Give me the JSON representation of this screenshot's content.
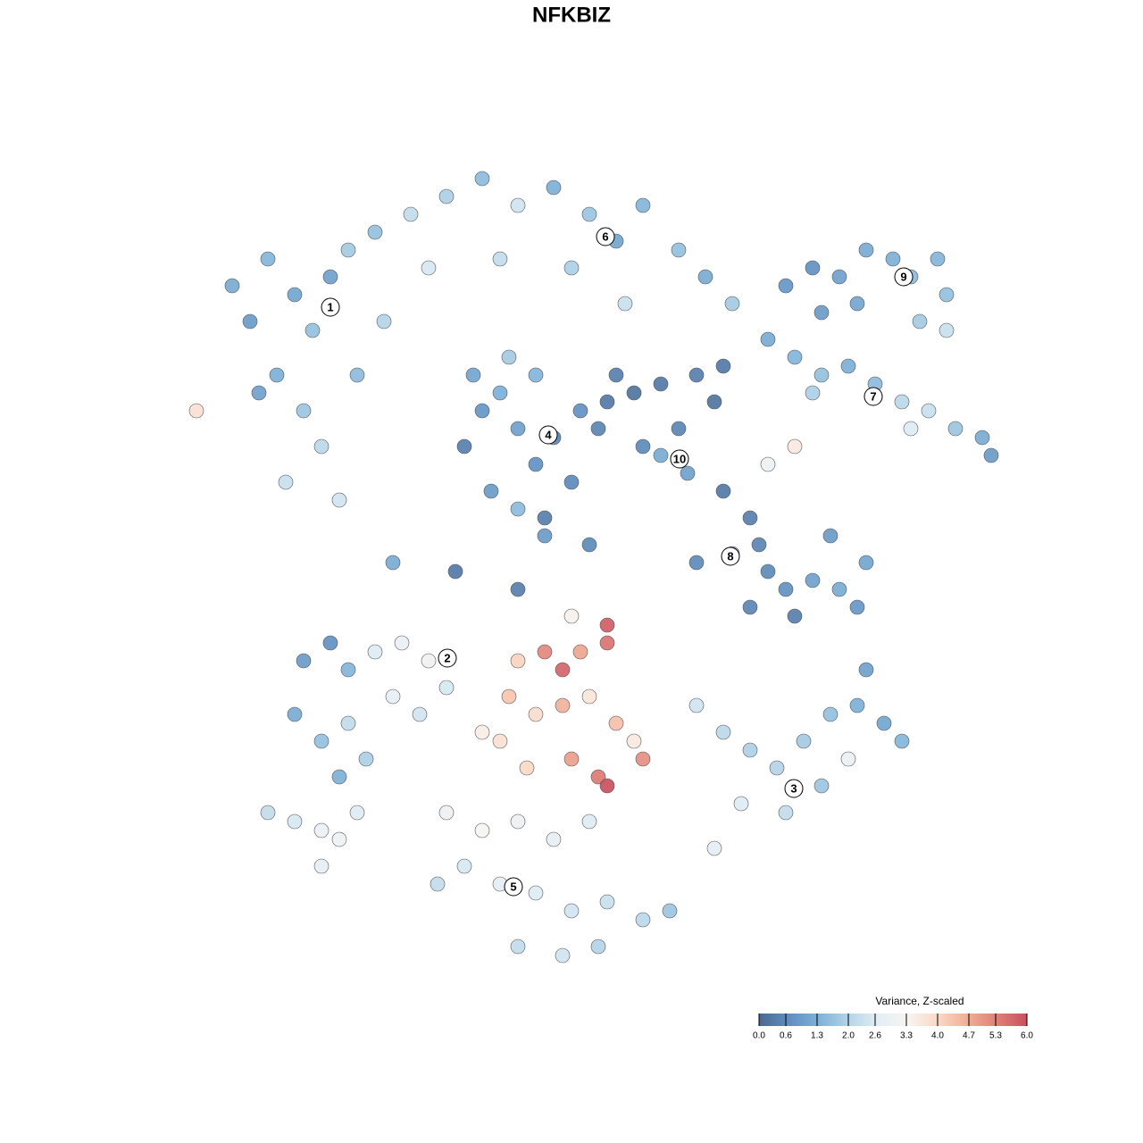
{
  "chart_data": {
    "type": "scatter",
    "title": "NFKBIZ",
    "xlim": [
      -45,
      50
    ],
    "ylim": [
      -46,
      46
    ],
    "x": [
      -38,
      -36,
      -34,
      -31,
      -29,
      -27,
      -25,
      -33,
      -30,
      -28,
      -32,
      -26,
      -24,
      -21,
      -35,
      -42,
      -22,
      -18,
      -14,
      -10,
      -6,
      -2,
      2,
      5,
      8,
      12,
      15,
      18,
      -16,
      -8,
      0,
      6,
      -12,
      -10,
      -8,
      -6,
      -4,
      -2,
      0,
      -9,
      -6,
      -3,
      -11,
      -4,
      1,
      -7,
      4,
      7,
      10,
      14,
      16,
      12,
      10,
      13,
      8,
      5,
      3,
      17,
      24,
      27,
      30,
      33,
      36,
      38,
      41,
      42,
      39,
      32,
      28,
      42,
      22,
      25,
      28,
      31,
      34,
      37,
      40,
      43,
      46,
      47,
      38,
      25,
      22,
      27,
      17,
      20,
      21,
      22,
      24,
      27,
      30,
      32,
      33,
      29,
      18,
      14,
      20,
      25,
      -30,
      -27,
      -25,
      -22,
      -19,
      -16,
      -14,
      -31,
      -28,
      -25,
      -23,
      -20,
      -17,
      -26,
      -6,
      -3,
      -1,
      1,
      4,
      4,
      -7,
      -4,
      -1,
      2,
      5,
      7,
      -8,
      -5,
      0,
      3,
      4,
      8,
      -10,
      0,
      14,
      17,
      20,
      23,
      26,
      29,
      32,
      35,
      37,
      28,
      24,
      19,
      16,
      31,
      -14,
      -10,
      -6,
      -2,
      2,
      -12,
      -8,
      -4,
      0,
      4,
      8,
      11,
      -6,
      -1,
      3,
      -15,
      -34,
      -31,
      -28,
      -26,
      -28,
      -24,
      -20,
      -13,
      -6,
      -3,
      2,
      33
    ],
    "y": [
      32,
      28,
      35,
      31,
      27,
      33,
      36,
      22,
      18,
      14,
      10,
      8,
      22,
      28,
      20,
      18,
      38,
      40,
      42,
      44,
      41,
      43,
      40,
      37,
      41,
      36,
      33,
      30,
      34,
      35,
      34,
      30,
      14,
      18,
      20,
      16,
      12,
      15,
      10,
      9,
      7,
      6,
      22,
      22,
      18,
      24,
      19,
      20,
      21,
      22,
      19,
      16,
      13,
      11,
      14,
      22,
      16,
      23,
      32,
      34,
      33,
      36,
      35,
      33,
      35,
      31,
      28,
      30,
      29,
      27,
      26,
      24,
      22,
      23,
      21,
      19,
      18,
      16,
      15,
      13,
      16,
      14,
      12,
      20,
      9,
      6,
      3,
      0,
      -2,
      -1,
      -2,
      -4,
      1,
      4,
      2,
      1,
      -4,
      -5,
      -10,
      -8,
      -11,
      -9,
      -8,
      -10,
      -13,
      -16,
      -19,
      -17,
      -21,
      -14,
      -16,
      -23,
      -10,
      -9,
      -11,
      -9,
      -6,
      -8,
      -14,
      -16,
      -15,
      -14,
      -17,
      -19,
      -19,
      -22,
      -21,
      -23,
      -24,
      -21,
      -18,
      -5,
      -15,
      -18,
      -20,
      -22,
      -19,
      -16,
      -15,
      -17,
      -19,
      -24,
      -27,
      -26,
      -31,
      -21,
      -27,
      -29,
      -28,
      -30,
      -28,
      -33,
      -35,
      -36,
      -38,
      -37,
      -39,
      -38,
      -42,
      -43,
      -42,
      -35,
      -27,
      -28,
      -29,
      -30,
      -33,
      -27,
      1,
      0,
      -2,
      4,
      3,
      -11
    ],
    "values": [
      1.2,
      0.9,
      1.4,
      1.1,
      1.6,
      1.0,
      1.8,
      1.3,
      1.7,
      2.1,
      2.3,
      2.4,
      1.5,
      2.0,
      1.0,
      3.8,
      1.6,
      2.2,
      1.9,
      1.5,
      2.4,
      1.3,
      1.7,
      1.1,
      1.4,
      1.6,
      1.2,
      1.8,
      2.5,
      2.2,
      1.9,
      2.3,
      0.4,
      0.8,
      1.3,
      1.0,
      0.7,
      0.5,
      0.6,
      0.9,
      1.5,
      0.4,
      1.1,
      1.4,
      0.7,
      1.8,
      0.3,
      0.2,
      0.3,
      0.4,
      0.2,
      0.5,
      1.2,
      1.0,
      0.6,
      0.4,
      0.5,
      0.3,
      0.8,
      0.7,
      1.0,
      1.2,
      1.3,
      1.5,
      1.4,
      1.6,
      1.8,
      1.1,
      0.9,
      2.3,
      1.2,
      1.4,
      1.6,
      1.3,
      1.5,
      2.1,
      2.3,
      1.7,
      1.2,
      0.9,
      2.6,
      3.6,
      3.0,
      1.9,
      0.3,
      0.4,
      0.5,
      0.6,
      0.7,
      1.0,
      1.2,
      0.8,
      1.1,
      0.9,
      1.4,
      0.6,
      0.5,
      0.4,
      0.9,
      0.7,
      1.4,
      2.6,
      2.9,
      3.1,
      2.5,
      1.2,
      1.6,
      2.2,
      1.9,
      2.8,
      2.4,
      1.3,
      4.1,
      5.2,
      5.7,
      4.8,
      5.8,
      5.5,
      4.3,
      3.9,
      4.6,
      3.7,
      4.4,
      3.6,
      3.8,
      4.0,
      4.9,
      5.4,
      6.0,
      5.1,
      3.5,
      3.4,
      2.4,
      2.1,
      1.9,
      2.0,
      1.8,
      1.6,
      1.3,
      1.1,
      1.4,
      1.7,
      2.2,
      2.6,
      2.7,
      2.9,
      3.0,
      3.3,
      3.0,
      2.8,
      2.6,
      2.5,
      2.7,
      2.6,
      2.4,
      2.3,
      2.1,
      1.7,
      2.2,
      2.4,
      2.0,
      2.2,
      2.2,
      2.5,
      2.9,
      3.0,
      2.8,
      2.6,
      1.2,
      0.3,
      0.4,
      0.9,
      0.6,
      1.0
    ],
    "cluster_labels": [
      {
        "label": "1",
        "x": -27,
        "y": 29.6
      },
      {
        "label": "2",
        "x": -13.9,
        "y": -9.7
      },
      {
        "label": "3",
        "x": 24.9,
        "y": -24.3
      },
      {
        "label": "4",
        "x": -2.6,
        "y": 15.3
      },
      {
        "label": "5",
        "x": -6.5,
        "y": -35.3
      },
      {
        "label": "6",
        "x": 3.8,
        "y": 37.5
      },
      {
        "label": "7",
        "x": 33.8,
        "y": 19.6
      },
      {
        "label": "8",
        "x": 17.8,
        "y": 1.7
      },
      {
        "label": "9",
        "x": 37.2,
        "y": 33
      },
      {
        "label": "10",
        "x": 12.1,
        "y": 12.6
      }
    ],
    "colorbar": {
      "title": "Variance, Z-scaled",
      "clim": [
        0,
        6
      ],
      "colors": [
        "#4a6890",
        "#5f8fc0",
        "#7eb2d8",
        "#b4d4e8",
        "#e3eef5",
        "#f7f4f1",
        "#fbd8c6",
        "#f1ae96",
        "#df7f77",
        "#c9505f"
      ],
      "ticks": [
        {
          "value": 0,
          "label": "0.0"
        },
        0.6,
        1.3,
        {
          "value": 2,
          "label": "2.0"
        },
        2.6,
        3.3,
        {
          "value": 4,
          "label": "4.0"
        },
        4.7,
        5.3,
        {
          "value": 6,
          "label": "6.0"
        }
      ]
    }
  }
}
